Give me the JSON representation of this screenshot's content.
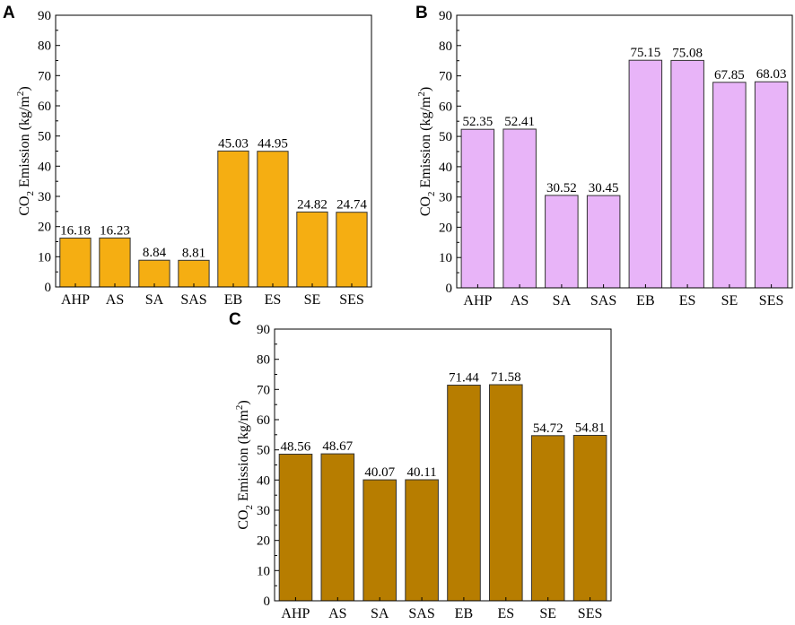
{
  "chart_data": [
    {
      "panel": "A",
      "type": "bar",
      "categories": [
        "AHP",
        "AS",
        "SA",
        "SAS",
        "EB",
        "ES",
        "SE",
        "SES"
      ],
      "values": [
        16.18,
        16.23,
        8.84,
        8.81,
        45.03,
        44.95,
        24.82,
        24.74
      ],
      "value_labels": [
        "16.18",
        "16.23",
        "8.84",
        "8.81",
        "45.03",
        "44.95",
        "24.82",
        "24.74"
      ],
      "ylabel_main": "CO",
      "ylabel_sub": "2",
      "ylabel_rest": " Emission (kg/m",
      "ylabel_sup": "2",
      "ylabel_close": ")",
      "ylim": [
        0,
        90
      ],
      "yticks": [
        0,
        10,
        20,
        30,
        40,
        50,
        60,
        70,
        80,
        90
      ],
      "ytick_labels": [
        "0",
        "10",
        "20",
        "30",
        "40",
        "50",
        "60",
        "70",
        "80",
        "90"
      ],
      "color": "#f5ae12"
    },
    {
      "panel": "B",
      "type": "bar",
      "categories": [
        "AHP",
        "AS",
        "SA",
        "SAS",
        "EB",
        "ES",
        "SE",
        "SES"
      ],
      "values": [
        52.35,
        52.41,
        30.52,
        30.45,
        75.15,
        75.08,
        67.85,
        68.03
      ],
      "value_labels": [
        "52.35",
        "52.41",
        "30.52",
        "30.45",
        "75.15",
        "75.08",
        "67.85",
        "68.03"
      ],
      "ylabel_main": "CO",
      "ylabel_sub": "2",
      "ylabel_rest": " Emission (kg/m",
      "ylabel_sup": "2",
      "ylabel_close": ")",
      "ylim": [
        0,
        90
      ],
      "yticks": [
        0,
        10,
        20,
        30,
        40,
        50,
        60,
        70,
        80,
        90
      ],
      "ytick_labels": [
        "0",
        "10",
        "20",
        "30",
        "40",
        "50",
        "60",
        "70",
        "80",
        "90"
      ],
      "color": "#e8b4f8"
    },
    {
      "panel": "C",
      "type": "bar",
      "categories": [
        "AHP",
        "AS",
        "SA",
        "SAS",
        "EB",
        "ES",
        "SE",
        "SES"
      ],
      "values": [
        48.56,
        48.67,
        40.07,
        40.11,
        71.44,
        71.58,
        54.72,
        54.81
      ],
      "value_labels": [
        "48.56",
        "48.67",
        "40.07",
        "40.11",
        "71.44",
        "71.58",
        "54.72",
        "54.81"
      ],
      "ylabel_main": "CO",
      "ylabel_sub": "2",
      "ylabel_rest": " Emission (kg/m",
      "ylabel_sup": "2",
      "ylabel_close": ")",
      "ylim": [
        0,
        90
      ],
      "yticks": [
        0,
        10,
        20,
        30,
        40,
        50,
        60,
        70,
        80,
        90
      ],
      "ytick_labels": [
        "0",
        "10",
        "20",
        "30",
        "40",
        "50",
        "60",
        "70",
        "80",
        "90"
      ],
      "color": "#b77d00"
    }
  ]
}
